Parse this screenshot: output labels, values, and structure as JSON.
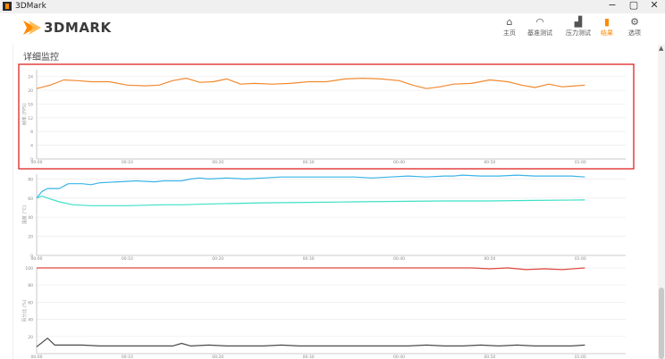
{
  "window": {
    "title": "3DMark",
    "minimize": "−",
    "maximize": "▢",
    "close": "✕"
  },
  "brand": {
    "name": "3DMARK",
    "accent": "#ff8a00"
  },
  "nav": [
    {
      "id": "home",
      "label": "主页",
      "icon": "home-icon",
      "glyph": "⌂",
      "active": false
    },
    {
      "id": "benchmark",
      "label": "基准测试",
      "icon": "gauge-icon",
      "glyph": "◠",
      "active": false
    },
    {
      "id": "stress",
      "label": "压力测试",
      "icon": "stress-chart-icon",
      "glyph": "▟",
      "active": false
    },
    {
      "id": "results",
      "label": "结果",
      "icon": "results-chart-icon",
      "glyph": "▮",
      "active": true
    },
    {
      "id": "options",
      "label": "选项",
      "icon": "gear-icon",
      "glyph": "⚙",
      "active": false
    }
  ],
  "section_title": "详细监控",
  "chart_data": [
    {
      "type": "line",
      "ylabel": "帧率 (FPS)",
      "ylim": [
        0,
        26
      ],
      "yticks": [
        0,
        4,
        8,
        12,
        16,
        20,
        24
      ],
      "xticks": [
        "00:00",
        "00:10",
        "00:20",
        "00:30",
        "00:40",
        "00:50",
        "01:00"
      ],
      "xmax": 65,
      "highlighted": true,
      "series": [
        {
          "color": "#f08a30",
          "x": [
            0,
            1.5,
            3,
            4.5,
            6,
            8,
            10,
            12,
            13.5,
            15,
            16.5,
            18,
            19.5,
            21,
            22.5,
            24,
            26,
            28,
            30,
            32,
            34,
            36,
            38,
            40,
            41.5,
            43,
            44.5,
            46,
            48,
            50,
            52,
            53.5,
            55,
            56.5,
            58,
            59,
            60.5
          ],
          "y": [
            20.5,
            21.5,
            23,
            22.8,
            22.5,
            22.5,
            21.5,
            21.3,
            21.5,
            22.8,
            23.5,
            22.3,
            22.5,
            23.3,
            21.8,
            22,
            21.8,
            22,
            22.5,
            22.5,
            23.3,
            23.5,
            23.3,
            22.8,
            21.5,
            20.5,
            21,
            21.8,
            22,
            23,
            22.5,
            21.5,
            20.8,
            21.8,
            21,
            21.2,
            21.5
          ]
        }
      ]
    },
    {
      "type": "line",
      "ylabel": "温度 (°C)",
      "ylim": [
        0,
        85
      ],
      "yticks": [
        0,
        20,
        40,
        60,
        80
      ],
      "xticks": [
        "00:00",
        "00:10",
        "00:20",
        "00:30",
        "00:40",
        "00:50",
        "01:00"
      ],
      "xmax": 65,
      "series": [
        {
          "color": "#3bb4e8",
          "x": [
            0,
            0.6,
            1.2,
            2.5,
            3.5,
            5,
            6,
            7,
            9,
            11,
            13,
            14,
            16,
            17,
            18,
            19,
            21,
            23,
            25,
            27,
            29,
            31,
            33,
            35,
            37,
            39,
            41,
            43,
            45,
            46,
            47,
            49,
            51,
            53,
            55,
            57,
            59,
            60.5
          ],
          "y": [
            60,
            67,
            70,
            70,
            75,
            75,
            74,
            76,
            77,
            78,
            77,
            78,
            78,
            80,
            81,
            80,
            81,
            80,
            81,
            82,
            82,
            82,
            82,
            82,
            81,
            82,
            83,
            82,
            83,
            83,
            84,
            83,
            83,
            84,
            83,
            83,
            83,
            82
          ]
        },
        {
          "color": "#3ee0c6",
          "x": [
            0,
            0.6,
            1.2,
            2.5,
            4,
            6,
            8,
            10,
            12,
            14,
            16,
            18,
            20,
            25,
            30,
            35,
            40,
            45,
            50,
            55,
            60.5
          ],
          "y": [
            60,
            62,
            60,
            56,
            53,
            52,
            52,
            52,
            52.5,
            53,
            53,
            53.5,
            54,
            55,
            55.5,
            56,
            56.5,
            57,
            57,
            57.5,
            58
          ]
        }
      ]
    },
    {
      "type": "line",
      "ylabel": "百分比 (%)",
      "ylim": [
        0,
        100
      ],
      "yticks": [
        20,
        40,
        60,
        80,
        100
      ],
      "xticks": [
        "00:00",
        "00:10",
        "00:20",
        "00:30",
        "00:40",
        "00:50",
        "01:00"
      ],
      "xmax": 65,
      "series": [
        {
          "color": "#e0463f",
          "x": [
            0,
            10,
            20,
            30,
            40,
            48,
            50,
            52,
            54,
            56,
            58,
            60.5
          ],
          "y": [
            100,
            100,
            100,
            100,
            100,
            100,
            99,
            100,
            98,
            99,
            98,
            100
          ]
        },
        {
          "color": "#4a4a4a",
          "x": [
            0,
            1.2,
            2,
            3,
            5,
            7,
            9,
            11,
            13,
            15,
            16,
            17,
            19,
            21,
            23,
            25,
            27,
            29,
            31,
            33,
            35,
            37,
            39,
            41,
            43,
            45,
            47,
            49,
            51,
            53,
            55,
            57,
            59,
            60.5
          ],
          "y": [
            8,
            18,
            10,
            10,
            10,
            9,
            9,
            9,
            9,
            9,
            12,
            9,
            10,
            9,
            9,
            9,
            10,
            9,
            9,
            9,
            9,
            9,
            9,
            9,
            10,
            9,
            9,
            10,
            9,
            10,
            9,
            9,
            9,
            10
          ]
        }
      ]
    }
  ]
}
